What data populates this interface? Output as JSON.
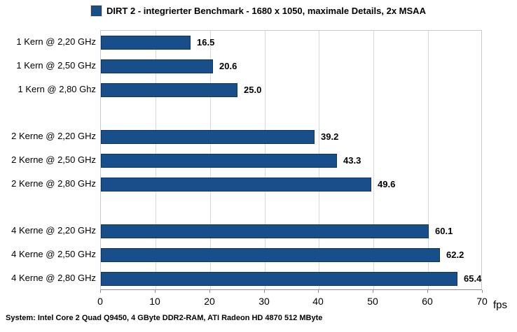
{
  "legend": {
    "label": "DIRT 2 - integrierter Benchmark - 1680 x 1050, maximale Details, 2x MSAA",
    "swatch_color": "#184e8a"
  },
  "footer": {
    "text": "System: Intel Core 2 Quad Q9450, 4 GByte DDR2-RAM, ATI Radeon HD 4870 512 MByte"
  },
  "chart_data": {
    "type": "bar",
    "orientation": "horizontal",
    "title": "DIRT 2 - integrierter Benchmark - 1680 x 1050, maximale Details, 2x MSAA",
    "categories": [
      "1 Kern @ 2,20 GHz",
      "1 Kern @ 2,50 GHz",
      "1 Kern @ 2,80 Ghz",
      "2 Kerne @ 2,20 GHz",
      "2 Kerne @ 2,50 GHz",
      "2 Kerne @ 2,80 GHz",
      "4 Kerne @ 2,20 GHz",
      "4 Kerne @ 2,50 GHz",
      "4 Kerne @ 2,80 GHz"
    ],
    "values": [
      16.5,
      20.6,
      25.0,
      39.2,
      43.3,
      49.6,
      60.1,
      62.2,
      65.4
    ],
    "value_labels": [
      "16.5",
      "20.6",
      "25.0",
      "39.2",
      "43.3",
      "49.6",
      "60.1",
      "62.2",
      "65.4"
    ],
    "group_sizes": [
      3,
      3,
      3
    ],
    "xlabel": "fps",
    "xlim": [
      0,
      70
    ],
    "xticks": [
      0,
      10,
      20,
      30,
      40,
      50,
      60,
      70
    ],
    "grid": true,
    "legend_position": "top-center",
    "bar_color": "#184e8a",
    "bar_border_color": "#0f3563",
    "gridline_color": "#d9d9d9"
  }
}
